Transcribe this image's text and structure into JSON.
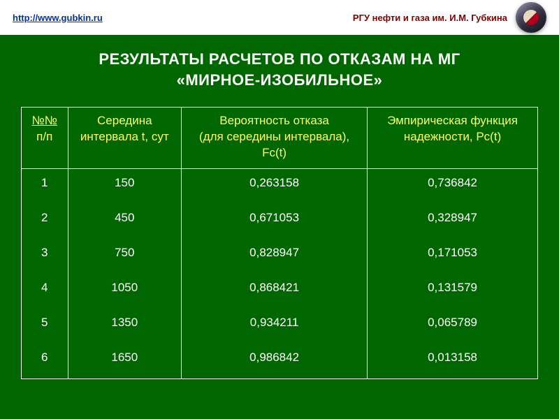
{
  "header": {
    "url": "http://www.gubkin.ru",
    "org": "РГУ нефти и газа им. И.М. Губкина"
  },
  "slide": {
    "title_line1": "РЕЗУЛЬТАТЫ РАСЧЕТОВ ПО ОТКАЗАМ НА МГ",
    "title_line2": "«МИРНОЕ-ИЗОБИЛЬНОЕ»",
    "background_color": "#006600"
  },
  "table": {
    "type": "table",
    "border_color": "#ffffff",
    "header_text_color": "#ffff66",
    "cell_text_color": "#ffffff",
    "font_size_pt": 13,
    "columns": [
      {
        "lines": [
          "№№",
          "п/п"
        ],
        "width_pct": 9
      },
      {
        "lines": [
          "Середина",
          "интервала t, сут"
        ],
        "width_pct": 22
      },
      {
        "lines": [
          "Вероятность отказа",
          "(для середины интервала),",
          "Fc(t)"
        ],
        "width_pct": 36
      },
      {
        "lines": [
          "Эмпирическая функция",
          "надежности, Pc(t)"
        ],
        "width_pct": 33
      }
    ],
    "rows": [
      [
        "1",
        "150",
        "0,263158",
        "0,736842"
      ],
      [
        "2",
        "450",
        "0,671053",
        "0,328947"
      ],
      [
        "3",
        "750",
        "0,828947",
        "0,171053"
      ],
      [
        "4",
        "1050",
        "0,868421",
        "0,131579"
      ],
      [
        "5",
        "1350",
        "0,934211",
        "0,065789"
      ],
      [
        "6",
        "1650",
        "0,986842",
        "0,013158"
      ]
    ]
  }
}
